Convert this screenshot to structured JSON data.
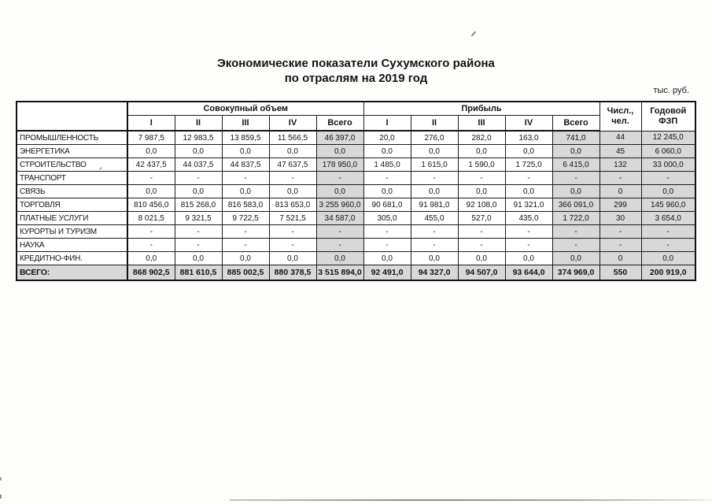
{
  "page": {
    "title_line1": "Экономические показатели Сухумского района",
    "title_line2": "по отраслям на 2019 год",
    "units_note": "тыс. руб."
  },
  "colors": {
    "cell_shade": "#d8d8d8"
  },
  "table": {
    "volume_group": "Совокупный объем",
    "profit_group": "Прибыль",
    "staff_l1": "Числ.,",
    "staff_l2": "чел.",
    "fund_l1": "Годовой",
    "fund_l2": "ФЗП",
    "quarters": [
      "I",
      "II",
      "III",
      "IV",
      "Всего"
    ],
    "shaded_value_columns": [
      4,
      9,
      10,
      11
    ],
    "rows": [
      {
        "label": "ПРОМЫШЛЕННОСТЬ",
        "values": [
          "7 987,5",
          "12 983,5",
          "13 859,5",
          "11 566,5",
          "46 397,0",
          "20,0",
          "276,0",
          "282,0",
          "163,0",
          "741,0",
          "44",
          "12 245,0"
        ]
      },
      {
        "label": "ЭНЕРГЕТИКА",
        "values": [
          "0,0",
          "0,0",
          "0,0",
          "0,0",
          "0,0",
          "0,0",
          "0,0",
          "0,0",
          "0,0",
          "0,0",
          "45",
          "6 060,0"
        ]
      },
      {
        "label": "СТРОИТЕЛЬСТВО",
        "values": [
          "42 437,5",
          "44 037,5",
          "44 837,5",
          "47 637,5",
          "178 950,0",
          "1 485,0",
          "1 615,0",
          "1 590,0",
          "1 725,0",
          "6 415,0",
          "132",
          "33 000,0"
        ]
      },
      {
        "label": "ТРАНСПОРТ",
        "values": [
          "-",
          "-",
          "-",
          "-",
          "-",
          "-",
          "-",
          "-",
          "-",
          "-",
          "-",
          "-"
        ]
      },
      {
        "label": "СВЯЗЬ",
        "values": [
          "0,0",
          "0,0",
          "0,0",
          "0,0",
          "0,0",
          "0,0",
          "0,0",
          "0,0",
          "0,0",
          "0,0",
          "0",
          "0,0"
        ]
      },
      {
        "label": "ТОРГОВЛЯ",
        "values": [
          "810 456,0",
          "815 268,0",
          "816 583,0",
          "813 653,0",
          "3 255 960,0",
          "90 681,0",
          "91 981,0",
          "92 108,0",
          "91 321,0",
          "366 091,0",
          "299",
          "145 960,0"
        ]
      },
      {
        "label": "ПЛАТНЫЕ УСЛУГИ",
        "values": [
          "8 021,5",
          "9 321,5",
          "9 722,5",
          "7 521,5",
          "34 587,0",
          "305,0",
          "455,0",
          "527,0",
          "435,0",
          "1 722,0",
          "30",
          "3 654,0"
        ]
      },
      {
        "label": "КУРОРТЫ И ТУРИЗМ",
        "values": [
          "-",
          "-",
          "-",
          "-",
          "-",
          "-",
          "-",
          "-",
          "-",
          "-",
          "-",
          "-"
        ]
      },
      {
        "label": "НАУКА",
        "values": [
          "-",
          "-",
          "-",
          "-",
          "-",
          "-",
          "-",
          "-",
          "-",
          "-",
          "-",
          "-"
        ]
      },
      {
        "label": "КРЕДИТНО-ФИН.",
        "values": [
          "0,0",
          "0,0",
          "0,0",
          "0,0",
          "0,0",
          "0,0",
          "0,0",
          "0,0",
          "0,0",
          "0,0",
          "0",
          "0,0"
        ]
      }
    ],
    "total_row": {
      "label": "ВСЕГО:",
      "values": [
        "868 902,5",
        "881 610,5",
        "885 002,5",
        "880 378,5",
        "3 515 894,0",
        "92 491,0",
        "94 327,0",
        "94 507,0",
        "93 644,0",
        "374 969,0",
        "550",
        "200 919,0"
      ]
    }
  }
}
